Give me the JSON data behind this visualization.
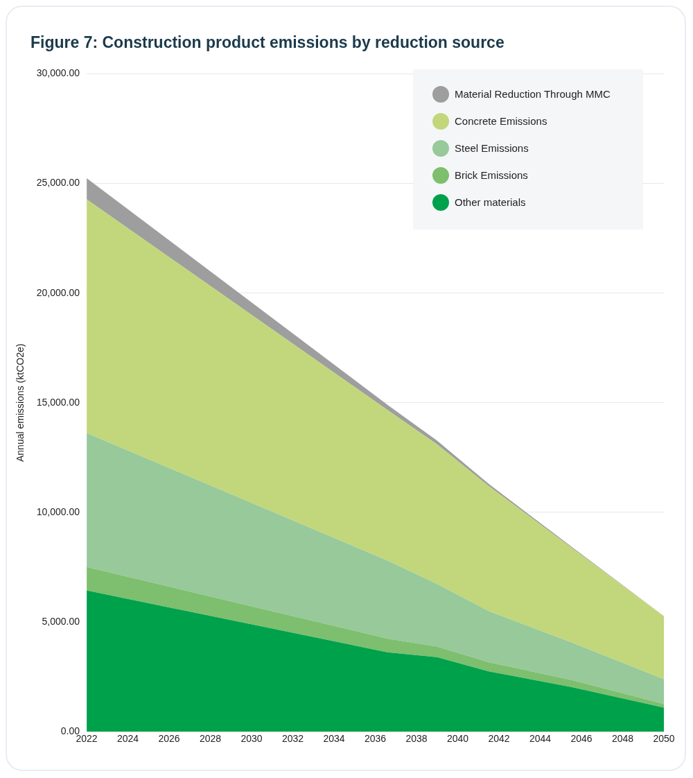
{
  "chart_data": {
    "type": "area",
    "stacked": true,
    "title": "Figure 7: Construction product emissions by reduction source",
    "ylabel": "Annual emissions (ktCO2e)",
    "x": [
      2022,
      2036.6,
      2039,
      2041.5,
      2045.5,
      2050
    ],
    "series": [
      {
        "name": "Other materials",
        "color": "#00a14b",
        "values": [
          6440,
          3620,
          3400,
          2750,
          2040,
          1100
        ]
      },
      {
        "name": "Brick Emissions",
        "color": "#7dbf6e",
        "values": [
          1070,
          620,
          480,
          420,
          320,
          160
        ]
      },
      {
        "name": "Steel Emissions",
        "color": "#97c99a",
        "values": [
          6110,
          3560,
          2850,
          2330,
          1720,
          1130
        ]
      },
      {
        "name": "Concrete Emissions",
        "color": "#c2d77b",
        "values": [
          10650,
          6860,
          6370,
          5700,
          4320,
          2870
        ]
      },
      {
        "name": "Material Reduction Through MMC",
        "color": "#9e9e9e",
        "values": [
          970,
          240,
          170,
          100,
          50,
          10
        ]
      }
    ],
    "xlim": [
      2022,
      2050
    ],
    "xticks": [
      2022,
      2024,
      2026,
      2028,
      2030,
      2032,
      2034,
      2036,
      2038,
      2040,
      2042,
      2044,
      2046,
      2048,
      2050
    ],
    "ylim": [
      0,
      30000
    ],
    "yticks": [
      {
        "value": 0,
        "label": "0.00"
      },
      {
        "value": 5000,
        "label": "5,000.00"
      },
      {
        "value": 10000,
        "label": "10,000.00"
      },
      {
        "value": 15000,
        "label": "15,000.00"
      },
      {
        "value": 20000,
        "label": "20,000.00"
      },
      {
        "value": 25000,
        "label": "25,000.00"
      },
      {
        "value": 30000,
        "label": "30,000.00"
      }
    ],
    "grid": "y",
    "legend": "top right"
  }
}
